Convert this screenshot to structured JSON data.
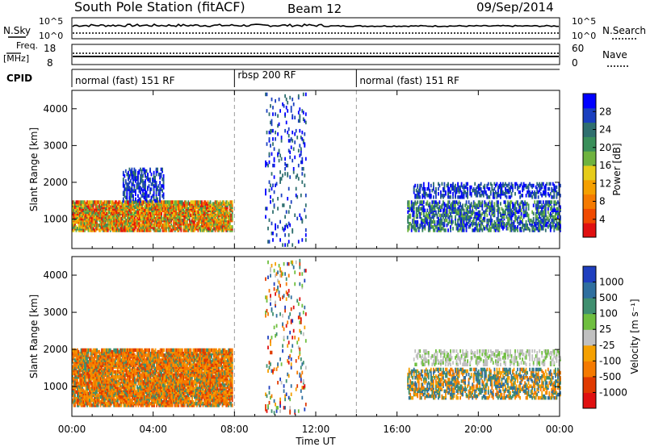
{
  "header": {
    "station": "South Pole Station (fitACF)",
    "beam": "Beam 12",
    "date": "09/Sep/2014"
  },
  "strips": {
    "nsky_label": "N.Sky",
    "nsearch_label": "N.Search",
    "nsky_ticks": [
      "10^5",
      "10^0"
    ],
    "nsearch_ticks": [
      "10^5",
      "10^0"
    ],
    "freq_label": "Freq.",
    "freq_unit": "[MHz]",
    "freq_ticks": [
      "18",
      "8"
    ],
    "nave_label": "Nave",
    "nave_ticks": [
      "60",
      "0"
    ],
    "cpid_label": "CPID"
  },
  "cpid_segments": [
    {
      "label": "normal (fast) 151 RF",
      "start_hour": 0,
      "end_hour": 8
    },
    {
      "label": "rbsp 200 RF",
      "start_hour": 8,
      "end_hour": 14
    },
    {
      "label": "normal (fast) 151 RF",
      "start_hour": 14,
      "end_hour": 24
    }
  ],
  "chart_data": [
    {
      "type": "heatmap",
      "name": "power",
      "ylabel": "Slant Range [km]",
      "yticks": [
        1000,
        2000,
        3000,
        4000
      ],
      "ylim": [
        200,
        4500
      ],
      "xlim_hours": [
        0,
        24
      ],
      "colorbar": {
        "label": "Power [dB]",
        "ticks": [
          "28",
          "24",
          "20",
          "16",
          "12",
          "8",
          "4"
        ],
        "colors": [
          "#0000ff",
          "#1a3fbf",
          "#2f6f6f",
          "#3a8f5a",
          "#6fb33f",
          "#e6cc1a",
          "#f5a000",
          "#f57a00",
          "#f04a00",
          "#e01010"
        ]
      },
      "echo_regions": [
        {
          "start_hour": 0,
          "end_hour": 7.9,
          "range_km": [
            700,
            1500
          ],
          "level": "strong"
        },
        {
          "start_hour": 2.5,
          "end_hour": 4.5,
          "range_km": [
            1500,
            2400
          ],
          "level": "weak"
        },
        {
          "start_hour": 9.5,
          "end_hour": 11.5,
          "range_km": [
            300,
            4400
          ],
          "level": "sparse"
        },
        {
          "start_hour": 16.8,
          "end_hour": 24,
          "range_km": [
            1600,
            2000
          ],
          "level": "weak"
        },
        {
          "start_hour": 16.5,
          "end_hour": 24,
          "range_km": [
            700,
            1500
          ],
          "level": "moderate"
        }
      ]
    },
    {
      "type": "heatmap",
      "name": "velocity",
      "ylabel": "Slant Range [km]",
      "yticks": [
        1000,
        2000,
        3000,
        4000
      ],
      "ylim": [
        200,
        4500
      ],
      "xlim_hours": [
        0,
        24
      ],
      "xlabel": "Time UT",
      "xticks": [
        "00:00",
        "04:00",
        "08:00",
        "12:00",
        "16:00",
        "20:00",
        "00:00"
      ],
      "colorbar": {
        "label": "Velocity [m s⁻¹]",
        "ticks": [
          "1000",
          "500",
          "100",
          "25",
          "-25",
          "-100",
          "-500",
          "-1000"
        ],
        "colors": [
          "#1f3fbf",
          "#2f6f9f",
          "#3f8f6f",
          "#6fbf3f",
          "#c0c0c0",
          "#f5a000",
          "#f57a00",
          "#e03a00",
          "#e01010"
        ]
      },
      "echo_regions": [
        {
          "start_hour": 0,
          "end_hour": 7.9,
          "range_km": [
            500,
            2000
          ],
          "level": "strong"
        },
        {
          "start_hour": 9.5,
          "end_hour": 11.5,
          "range_km": [
            300,
            4400
          ],
          "level": "sparse"
        },
        {
          "start_hour": 16.8,
          "end_hour": 24,
          "range_km": [
            1600,
            2000
          ],
          "level": "weak"
        },
        {
          "start_hour": 16.5,
          "end_hour": 24,
          "range_km": [
            700,
            1500
          ],
          "level": "moderate"
        }
      ]
    }
  ]
}
